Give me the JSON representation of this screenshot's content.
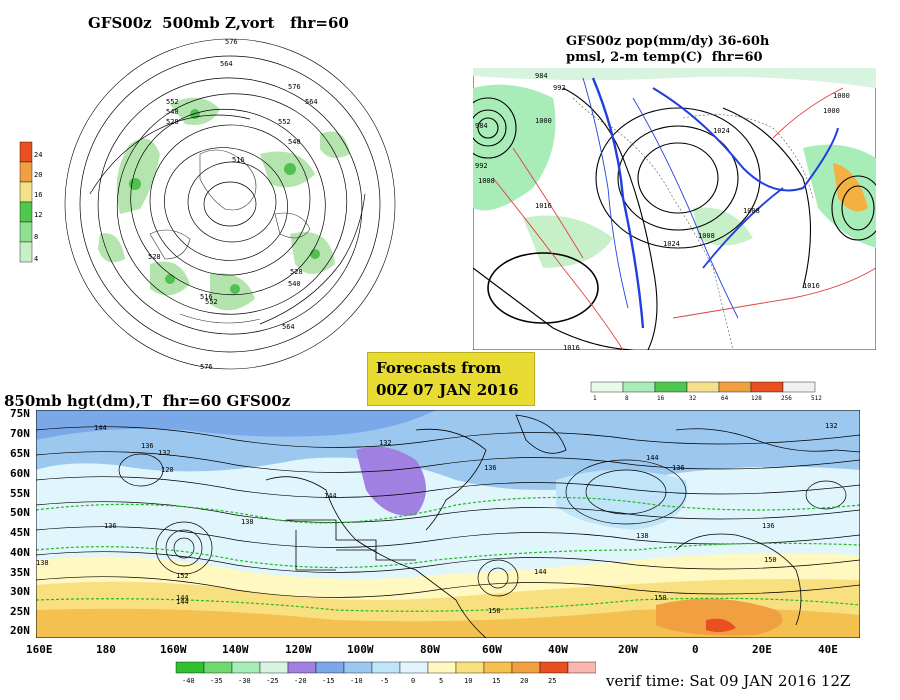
{
  "panels": {
    "polar": {
      "title": "GFS00z  500mb Z,vort   fhr=60",
      "contour_labels": [
        "576",
        "564",
        "552",
        "540",
        "528",
        "516",
        "576",
        "564",
        "552",
        "540",
        "528",
        "540",
        "552",
        "564",
        "576",
        "516",
        "528"
      ],
      "colorbar": [
        "24",
        "20",
        "16",
        "12",
        "8",
        "4"
      ],
      "colorbar_colors": [
        "#e85020",
        "#f0a040",
        "#f4e08a",
        "#50c850",
        "#90e090",
        "#c8f0c8"
      ]
    },
    "na": {
      "title_line1": "GFS00z pop(mm/dy) 36-60h",
      "title_line2": "pmsl, 2-m temp(C)  fhr=60",
      "contour_labels": [
        "984",
        "992",
        "1000",
        "1008",
        "1016",
        "1024",
        "1016",
        "1008",
        "1000",
        "984",
        "992",
        "1016",
        "1024",
        "1008",
        "1000"
      ],
      "colorbar": [
        "1",
        "8",
        "16",
        "32",
        "64",
        "128",
        "256",
        "512"
      ],
      "colorbar_colors": [
        "#e8fae8",
        "#a8ecb8",
        "#50c850",
        "#f4e08a",
        "#f0a040",
        "#e85020",
        "#f0f0f0"
      ]
    },
    "lower": {
      "title": "850mb hgt(dm),T  fhr=60 GFS00z",
      "lat_labels": [
        "75N",
        "70N",
        "65N",
        "60N",
        "55N",
        "50N",
        "45N",
        "40N",
        "35N",
        "30N",
        "25N",
        "20N"
      ],
      "lon_labels": [
        "160E",
        "180",
        "160W",
        "140W",
        "120W",
        "100W",
        "80W",
        "60W",
        "40W",
        "20W",
        "0",
        "20E",
        "40E"
      ],
      "contour_labels": [
        "144",
        "136",
        "132",
        "120",
        "136",
        "138",
        "144",
        "138",
        "144",
        "132",
        "136",
        "138",
        "144",
        "144",
        "150",
        "132",
        "136",
        "150",
        "144",
        "152",
        "136",
        "150"
      ],
      "colorbar": [
        "-40",
        "-35",
        "-30",
        "-25",
        "-20",
        "-15",
        "-10",
        "-5",
        "0",
        "5",
        "10",
        "15",
        "20",
        "25"
      ],
      "colorbar_colors": [
        "#30c030",
        "#70d870",
        "#a8ecb8",
        "#d8f4e0",
        "#a080e0",
        "#7aa8e8",
        "#9cc8f0",
        "#c0e4f8",
        "#e0f6fc",
        "#fff8c0",
        "#f8e080",
        "#f4c050",
        "#f0a040",
        "#e85020",
        "#f8b8b0"
      ]
    }
  },
  "forecast_box": {
    "line1": "Forecasts from",
    "line2": "00Z 07 JAN 2016"
  },
  "verif": "verif time: Sat 09 JAN 2016 12Z"
}
